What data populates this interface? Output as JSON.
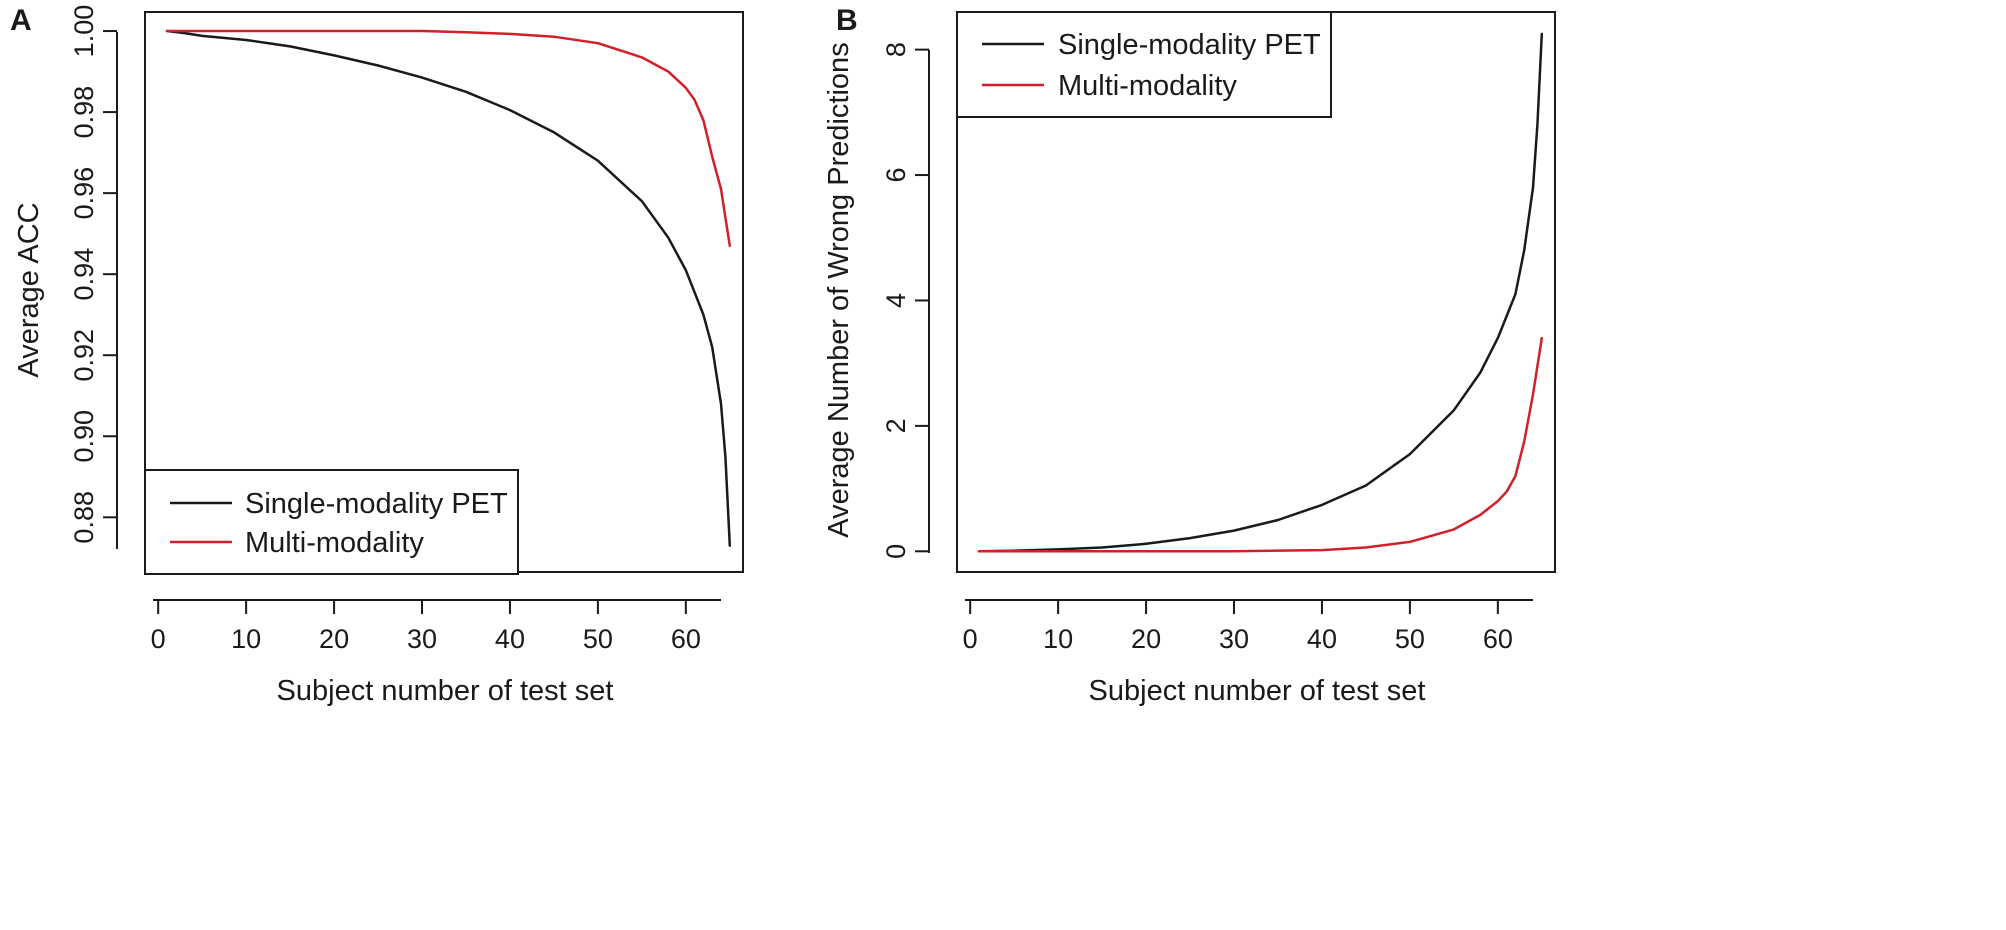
{
  "figure": {
    "panels": [
      {
        "letter": "A",
        "chart_data": {
          "type": "line",
          "xlabel": "Subject number of test set",
          "ylabel": "Average ACC",
          "xlim": [
            -1.5,
            66.5
          ],
          "ylim": [
            0.8665,
            1.0047
          ],
          "xticks": [
            0,
            10,
            20,
            30,
            40,
            50,
            60
          ],
          "yticks": [
            0.88,
            0.9,
            0.92,
            0.94,
            0.96,
            0.98,
            1.0
          ],
          "ytick_labels": [
            "0.88",
            "0.90",
            "0.92",
            "0.94",
            "0.96",
            "0.98",
            "1.00"
          ],
          "legend_position": "bottom-left",
          "series": [
            {
              "name": "Single-modality PET",
              "color": "#1a1a1a",
              "x": [
                1,
                3,
                5,
                10,
                15,
                20,
                25,
                30,
                35,
                40,
                45,
                50,
                55,
                58,
                60,
                62,
                63,
                64,
                64.5,
                65
              ],
              "y": [
                1.0,
                0.9995,
                0.9988,
                0.9978,
                0.9962,
                0.994,
                0.9915,
                0.9885,
                0.985,
                0.9805,
                0.975,
                0.968,
                0.958,
                0.949,
                0.941,
                0.93,
                0.922,
                0.908,
                0.895,
                0.873
              ]
            },
            {
              "name": "Multi-modality",
              "color": "#d0202a",
              "x": [
                1,
                10,
                20,
                30,
                35,
                40,
                45,
                50,
                55,
                58,
                60,
                61,
                62,
                63,
                64,
                65
              ],
              "y": [
                1.0,
                1.0,
                1.0,
                1.0,
                0.9997,
                0.9993,
                0.9986,
                0.997,
                0.9935,
                0.99,
                0.986,
                0.983,
                0.978,
                0.969,
                0.961,
                0.947
              ]
            }
          ]
        }
      },
      {
        "letter": "B",
        "chart_data": {
          "type": "line",
          "xlabel": "Subject number of test set",
          "ylabel": "Average Number of Wrong Predictions",
          "xlim": [
            -1.5,
            66.5
          ],
          "ylim": [
            -0.33,
            8.6
          ],
          "xticks": [
            0,
            10,
            20,
            30,
            40,
            50,
            60
          ],
          "yticks": [
            0,
            2,
            4,
            6,
            8
          ],
          "ytick_labels": [
            "0",
            "2",
            "4",
            "6",
            "8"
          ],
          "legend_position": "top-left",
          "series": [
            {
              "name": "Single-modality PET",
              "color": "#1a1a1a",
              "x": [
                1,
                5,
                10,
                15,
                20,
                25,
                30,
                35,
                40,
                45,
                50,
                55,
                58,
                60,
                62,
                63,
                64,
                64.5,
                65
              ],
              "y": [
                0.0,
                0.01,
                0.03,
                0.06,
                0.12,
                0.21,
                0.33,
                0.5,
                0.74,
                1.05,
                1.55,
                2.25,
                2.85,
                3.4,
                4.1,
                4.8,
                5.8,
                6.8,
                8.25
              ]
            },
            {
              "name": "Multi-modality",
              "color": "#d0202a",
              "x": [
                1,
                10,
                20,
                30,
                40,
                45,
                50,
                55,
                58,
                60,
                61,
                62,
                63,
                64,
                65
              ],
              "y": [
                0.0,
                0.0,
                0.0,
                0.0,
                0.02,
                0.06,
                0.15,
                0.35,
                0.58,
                0.8,
                0.95,
                1.2,
                1.75,
                2.5,
                3.4
              ]
            }
          ]
        }
      }
    ]
  }
}
